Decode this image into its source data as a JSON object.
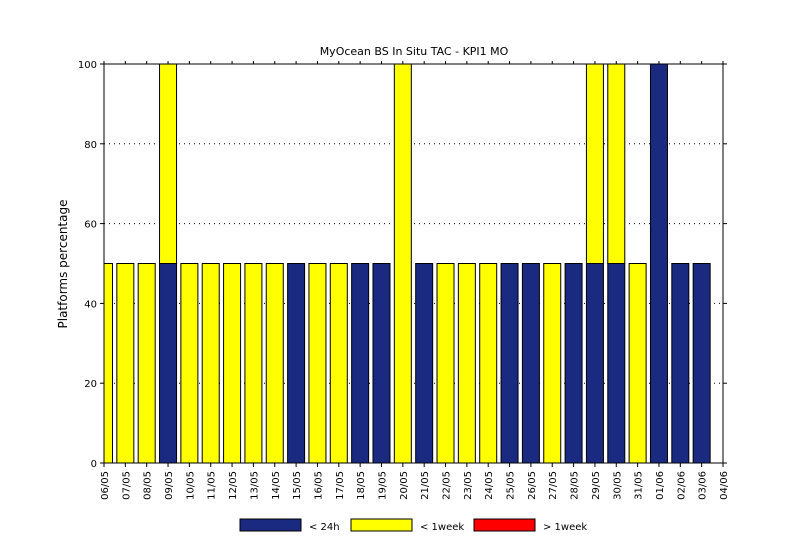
{
  "chart_data": {
    "type": "bar",
    "stacked": true,
    "title": "MyOcean  BS In Situ TAC - KPI1  MO",
    "ylabel": "Platforms percentage",
    "xlabel": "",
    "ylim": [
      0,
      100
    ],
    "yticks": [
      0,
      20,
      40,
      60,
      80,
      100
    ],
    "grid": "y-dotted",
    "legend_position": "bottom",
    "categories": [
      "06/05",
      "07/05",
      "08/05",
      "09/05",
      "10/05",
      "11/05",
      "12/05",
      "13/05",
      "14/05",
      "15/05",
      "16/05",
      "17/05",
      "18/05",
      "19/05",
      "20/05",
      "21/05",
      "22/05",
      "23/05",
      "24/05",
      "25/05",
      "26/05",
      "27/05",
      "28/05",
      "29/05",
      "30/05",
      "31/05",
      "01/06",
      "02/06",
      "03/06",
      "04/06"
    ],
    "series": [
      {
        "name": "< 24h",
        "color": "#1a2a80",
        "values": [
          0,
          0,
          0,
          50,
          0,
          0,
          0,
          0,
          0,
          50,
          0,
          0,
          50,
          50,
          0,
          50,
          0,
          0,
          0,
          50,
          50,
          0,
          50,
          50,
          50,
          0,
          100,
          50,
          50,
          0
        ]
      },
      {
        "name": "< 1week",
        "color": "#ffff00",
        "values": [
          50,
          50,
          50,
          50,
          50,
          50,
          50,
          50,
          50,
          0,
          50,
          50,
          0,
          0,
          100,
          0,
          50,
          50,
          50,
          0,
          0,
          50,
          0,
          50,
          50,
          50,
          0,
          0,
          0,
          0
        ]
      },
      {
        "name": "> 1week",
        "color": "#ff0000",
        "values": [
          0,
          0,
          0,
          0,
          0,
          0,
          0,
          0,
          0,
          0,
          0,
          0,
          0,
          0,
          0,
          0,
          0,
          0,
          0,
          0,
          0,
          0,
          0,
          0,
          0,
          0,
          0,
          0,
          0,
          0
        ]
      }
    ]
  }
}
